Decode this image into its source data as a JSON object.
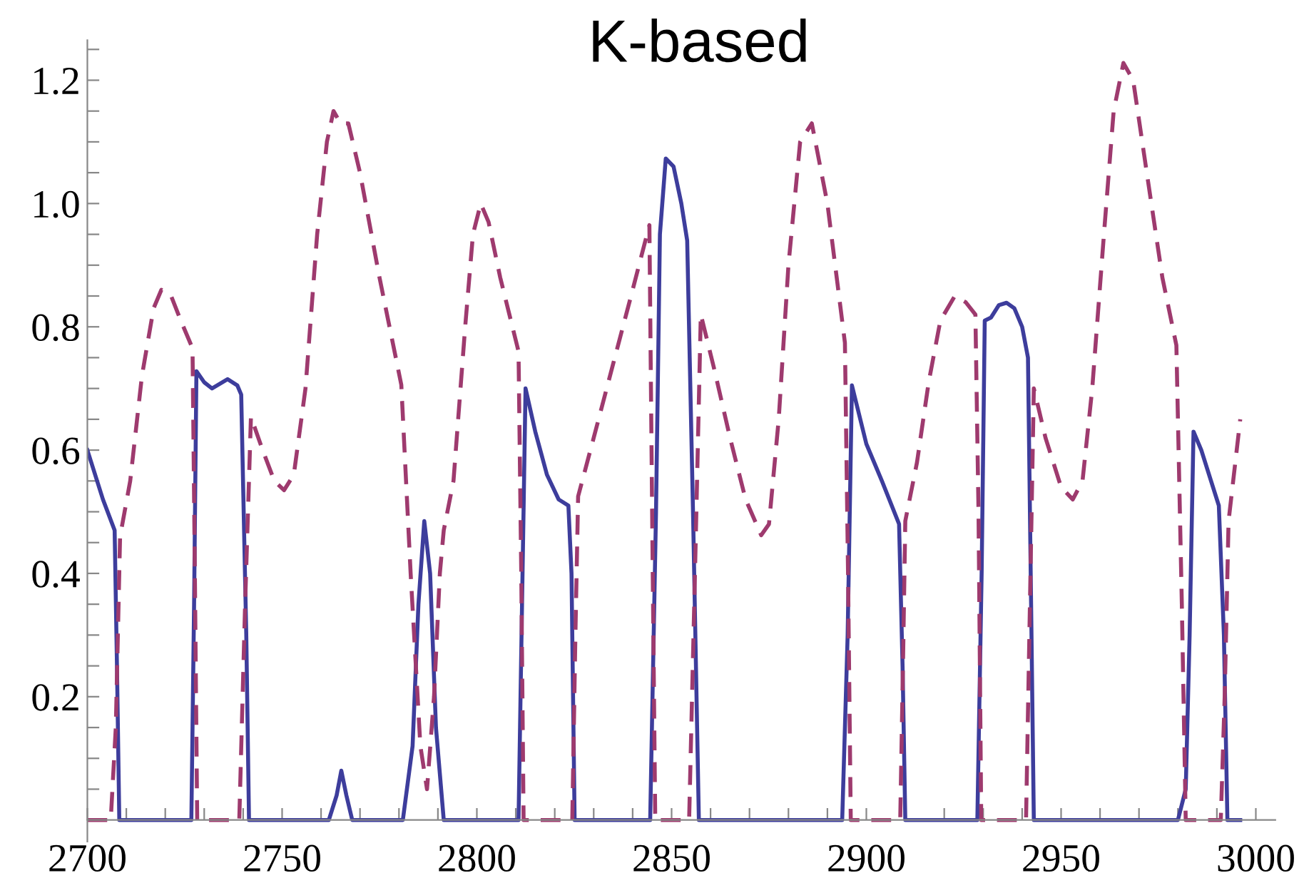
{
  "chart_data": {
    "type": "line",
    "title": "K-based",
    "xlim": [
      2700,
      3005
    ],
    "ylim": [
      -0.035,
      1.265
    ],
    "xticks": [
      2700,
      {
        "value": 2710,
        "label": null
      },
      {
        "value": 2720,
        "label": null
      },
      {
        "value": 2730,
        "label": null
      },
      {
        "value": 2740,
        "label": null
      },
      2750,
      {
        "value": 2760,
        "label": null
      },
      {
        "value": 2770,
        "label": null
      },
      {
        "value": 2780,
        "label": null
      },
      {
        "value": 2790,
        "label": null
      },
      2800,
      {
        "value": 2810,
        "label": null
      },
      {
        "value": 2820,
        "label": null
      },
      {
        "value": 2830,
        "label": null
      },
      {
        "value": 2840,
        "label": null
      },
      2850,
      {
        "value": 2860,
        "label": null
      },
      {
        "value": 2870,
        "label": null
      },
      {
        "value": 2880,
        "label": null
      },
      {
        "value": 2890,
        "label": null
      },
      2900,
      {
        "value": 2910,
        "label": null
      },
      {
        "value": 2920,
        "label": null
      },
      {
        "value": 2930,
        "label": null
      },
      {
        "value": 2940,
        "label": null
      },
      2950,
      {
        "value": 2960,
        "label": null
      },
      {
        "value": 2970,
        "label": null
      },
      {
        "value": 2980,
        "label": null
      },
      {
        "value": 2990,
        "label": null
      },
      3000
    ],
    "yticks": [
      {
        "value": 0.05,
        "label": null
      },
      {
        "value": 0.1,
        "label": null
      },
      {
        "value": 0.15,
        "label": null
      },
      {
        "value": 0.2,
        "label": "0.2"
      },
      {
        "value": 0.25,
        "label": null
      },
      {
        "value": 0.3,
        "label": null
      },
      {
        "value": 0.35,
        "label": null
      },
      {
        "value": 0.4,
        "label": "0.4"
      },
      {
        "value": 0.45,
        "label": null
      },
      {
        "value": 0.5,
        "label": null
      },
      {
        "value": 0.55,
        "label": null
      },
      {
        "value": 0.6,
        "label": "0.6"
      },
      {
        "value": 0.65,
        "label": null
      },
      {
        "value": 0.7,
        "label": null
      },
      {
        "value": 0.75,
        "label": null
      },
      {
        "value": 0.8,
        "label": "0.8"
      },
      {
        "value": 0.85,
        "label": null
      },
      {
        "value": 0.9,
        "label": null
      },
      {
        "value": 0.95,
        "label": null
      },
      {
        "value": 1.0,
        "label": "1.0"
      },
      {
        "value": 1.05,
        "label": null
      },
      {
        "value": 1.1,
        "label": null
      },
      {
        "value": 1.15,
        "label": null
      },
      {
        "value": 1.2,
        "label": "1.2"
      },
      {
        "value": 1.25,
        "label": null
      }
    ],
    "grid": false,
    "marker": "none",
    "series": [
      {
        "color": "#3d3d9c",
        "line_style": "solid",
        "x": [
          2700,
          2704,
          2707,
          2707.6,
          2708.2,
          2726.7,
          2727.4,
          2728,
          2730,
          2732,
          2736,
          2738.5,
          2739.5,
          2740.8,
          2741.5,
          2762,
          2764,
          2765.2,
          2766.5,
          2768,
          2781,
          2783.5,
          2785,
          2786.5,
          2788,
          2789.5,
          2791.5,
          2810.7,
          2811.6,
          2812.5,
          2815,
          2818,
          2821,
          2823.5,
          2824.3,
          2825.1,
          2844.5,
          2846,
          2847,
          2848.5,
          2850.5,
          2852.5,
          2854,
          2855.5,
          2857,
          2893.8,
          2895.2,
          2896.3,
          2900,
          2904,
          2908.4,
          2909.3,
          2910,
          2928.5,
          2929.6,
          2930.4,
          2932,
          2934,
          2936,
          2938,
          2940,
          2941.5,
          2942.3,
          2943,
          2980,
          2982,
          2983,
          2984,
          2986,
          2988.5,
          2990.5,
          2991.8,
          2992.7,
          2996
        ],
        "values": [
          0.6,
          0.52,
          0.47,
          0.25,
          0,
          0,
          0.35,
          0.728,
          0.71,
          0.7,
          0.715,
          0.705,
          0.69,
          0.3,
          0,
          0,
          0.04,
          0.08,
          0.04,
          0,
          0,
          0.12,
          0.35,
          0.485,
          0.4,
          0.15,
          0,
          0,
          0.35,
          0.7,
          0.63,
          0.56,
          0.52,
          0.51,
          0.4,
          0,
          0,
          0.5,
          0.95,
          1.073,
          1.06,
          1.0,
          0.94,
          0.5,
          0,
          0,
          0.3,
          0.705,
          0.61,
          0.55,
          0.48,
          0.25,
          0,
          0,
          0.4,
          0.81,
          0.815,
          0.835,
          0.839,
          0.83,
          0.8,
          0.75,
          0.35,
          0,
          0,
          0.05,
          0.3,
          0.63,
          0.6,
          0.55,
          0.51,
          0.3,
          0,
          0
        ]
      },
      {
        "color": "#9e3a6e",
        "line_style": "dashed",
        "x": [
          2700,
          2706,
          2707.3,
          2708.4,
          2711,
          2714,
          2717,
          2719,
          2721.5,
          2724,
          2727,
          2727.6,
          2728.2,
          2739,
          2740.5,
          2742,
          2745,
          2748,
          2750.5,
          2753,
          2756,
          2759,
          2761.5,
          2763.2,
          2765,
          2767,
          2770,
          2775,
          2780.6,
          2783,
          2785.5,
          2787.2,
          2789,
          2790.5,
          2791.5,
          2794,
          2797,
          2799,
          2801,
          2803,
          2806,
          2810.7,
          2811.4,
          2812,
          2824.5,
          2825.3,
          2826,
          2830,
          2835,
          2840,
          2844.3,
          2845,
          2845.8,
          2854.5,
          2856,
          2857.5,
          2861,
          2865,
          2869,
          2873,
          2875,
          2877.5,
          2880,
          2883,
          2886,
          2890,
          2894.5,
          2895.3,
          2896,
          2908.7,
          2909.4,
          2910,
          2913,
          2916,
          2919,
          2922.7,
          2925.5,
          2928,
          2928.8,
          2929.5,
          2941,
          2942,
          2943,
          2946,
          2950,
          2953,
          2955.5,
          2958,
          2961,
          2963.5,
          2966,
          2968.5,
          2972,
          2976,
          2979.6,
          2981,
          2982,
          2991,
          2992,
          2993,
          2996
        ],
        "values": [
          0,
          0,
          0.15,
          0.46,
          0.55,
          0.72,
          0.83,
          0.86,
          0.85,
          0.81,
          0.765,
          0.4,
          0,
          0,
          0.35,
          0.654,
          0.6,
          0.55,
          0.535,
          0.56,
          0.7,
          0.95,
          1.1,
          1.15,
          1.13,
          1.13,
          1.05,
          0.88,
          0.706,
          0.4,
          0.12,
          0.05,
          0.2,
          0.4,
          0.47,
          0.55,
          0.8,
          0.95,
          1.0,
          0.97,
          0.88,
          0.76,
          0.4,
          0,
          0,
          0.3,
          0.525,
          0.62,
          0.74,
          0.86,
          0.965,
          0.5,
          0,
          0,
          0.4,
          0.82,
          0.73,
          0.62,
          0.52,
          0.462,
          0.48,
          0.65,
          0.9,
          1.1,
          1.13,
          1.0,
          0.774,
          0.4,
          0,
          0,
          0.25,
          0.485,
          0.58,
          0.71,
          0.81,
          0.85,
          0.84,
          0.82,
          0.5,
          0,
          0,
          0.35,
          0.7,
          0.62,
          0.54,
          0.52,
          0.55,
          0.7,
          0.95,
          1.15,
          1.228,
          1.2,
          1.05,
          0.88,
          0.77,
          0.35,
          0,
          0,
          0.2,
          0.485,
          0.65
        ]
      }
    ]
  }
}
